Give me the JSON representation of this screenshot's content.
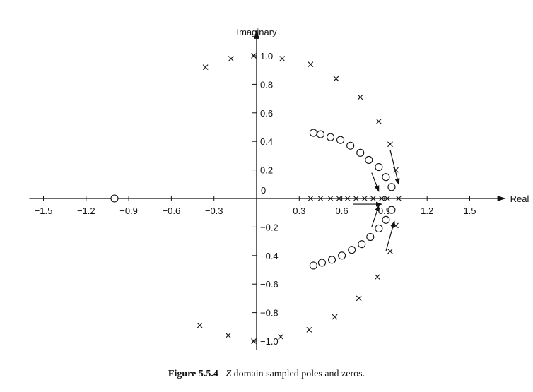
{
  "chart_data": {
    "type": "scatter",
    "title": "",
    "xlabel": "Real",
    "ylabel": "Imaginary",
    "xlim": [
      -1.6,
      1.6
    ],
    "ylim": [
      -1.02,
      1.05
    ],
    "x_ticks": [
      -1.5,
      -1.2,
      -0.9,
      -0.6,
      -0.3,
      0.3,
      0.6,
      0.9,
      1.2,
      1.5
    ],
    "x_tick_labels": [
      "−1.5",
      "−1.2",
      "−0.9",
      "−0.6",
      "−0.3",
      "0.3",
      "0.6",
      "0.9",
      "1.2",
      "1.5"
    ],
    "y_ticks": [
      1.0,
      0.8,
      0.6,
      0.4,
      0.2,
      -0.2,
      -0.4,
      -0.6,
      -0.8,
      -1.0
    ],
    "y_tick_labels": [
      "1.0",
      "0.8",
      "0.6",
      "0.4",
      "0.2",
      "−0.2",
      "−0.4",
      "−0.6",
      "−0.8",
      "−1.0"
    ],
    "origin_label": "0",
    "grid": false,
    "series": [
      {
        "marker": "x",
        "points": [
          [
            -0.36,
            0.92
          ],
          [
            -0.18,
            0.98
          ],
          [
            -0.02,
            1.0
          ],
          [
            0.18,
            0.98
          ],
          [
            0.38,
            0.94
          ],
          [
            0.56,
            0.84
          ],
          [
            0.73,
            0.71
          ],
          [
            0.86,
            0.54
          ],
          [
            0.94,
            0.38
          ],
          [
            0.98,
            0.2
          ],
          [
            0.38,
            0.0
          ],
          [
            0.45,
            0.0
          ],
          [
            0.52,
            0.0
          ],
          [
            0.58,
            0.0
          ],
          [
            0.64,
            0.0
          ],
          [
            0.7,
            0.0
          ],
          [
            0.76,
            0.0
          ],
          [
            0.82,
            0.0
          ],
          [
            0.88,
            0.0
          ],
          [
            0.92,
            0.0
          ],
          [
            1.0,
            0.0
          ],
          [
            0.98,
            -0.19
          ],
          [
            0.94,
            -0.37
          ],
          [
            0.85,
            -0.55
          ],
          [
            0.72,
            -0.7
          ],
          [
            0.55,
            -0.83
          ],
          [
            0.37,
            -0.92
          ],
          [
            0.17,
            -0.97
          ],
          [
            -0.2,
            -0.96
          ],
          [
            -0.4,
            -0.89
          ],
          [
            -0.02,
            -1.0
          ]
        ]
      },
      {
        "marker": "o",
        "points": [
          [
            -1.0,
            0.0
          ],
          [
            0.4,
            0.46
          ],
          [
            0.45,
            0.45
          ],
          [
            0.52,
            0.43
          ],
          [
            0.59,
            0.41
          ],
          [
            0.66,
            0.37
          ],
          [
            0.73,
            0.32
          ],
          [
            0.79,
            0.27
          ],
          [
            0.86,
            0.22
          ],
          [
            0.91,
            0.15
          ],
          [
            0.95,
            0.08
          ],
          [
            0.4,
            -0.47
          ],
          [
            0.46,
            -0.45
          ],
          [
            0.53,
            -0.43
          ],
          [
            0.6,
            -0.4
          ],
          [
            0.67,
            -0.36
          ],
          [
            0.74,
            -0.32
          ],
          [
            0.8,
            -0.27
          ],
          [
            0.86,
            -0.21
          ],
          [
            0.91,
            -0.15
          ],
          [
            0.95,
            -0.08
          ]
        ]
      }
    ],
    "arrows": [
      {
        "from": [
          0.94,
          0.34
        ],
        "to": [
          1.0,
          0.1
        ]
      },
      {
        "from": [
          0.81,
          0.18
        ],
        "to": [
          0.86,
          0.05
        ]
      },
      {
        "from": [
          0.68,
          -0.04
        ],
        "to": [
          0.88,
          -0.04
        ]
      },
      {
        "from": [
          0.81,
          -0.2
        ],
        "to": [
          0.86,
          -0.05
        ]
      },
      {
        "from": [
          0.91,
          -0.37
        ],
        "to": [
          0.97,
          -0.16
        ]
      }
    ]
  },
  "caption": {
    "figure_label": "Figure 5.5.4",
    "variable": "Z",
    "text": "domain sampled poles and zeros."
  }
}
